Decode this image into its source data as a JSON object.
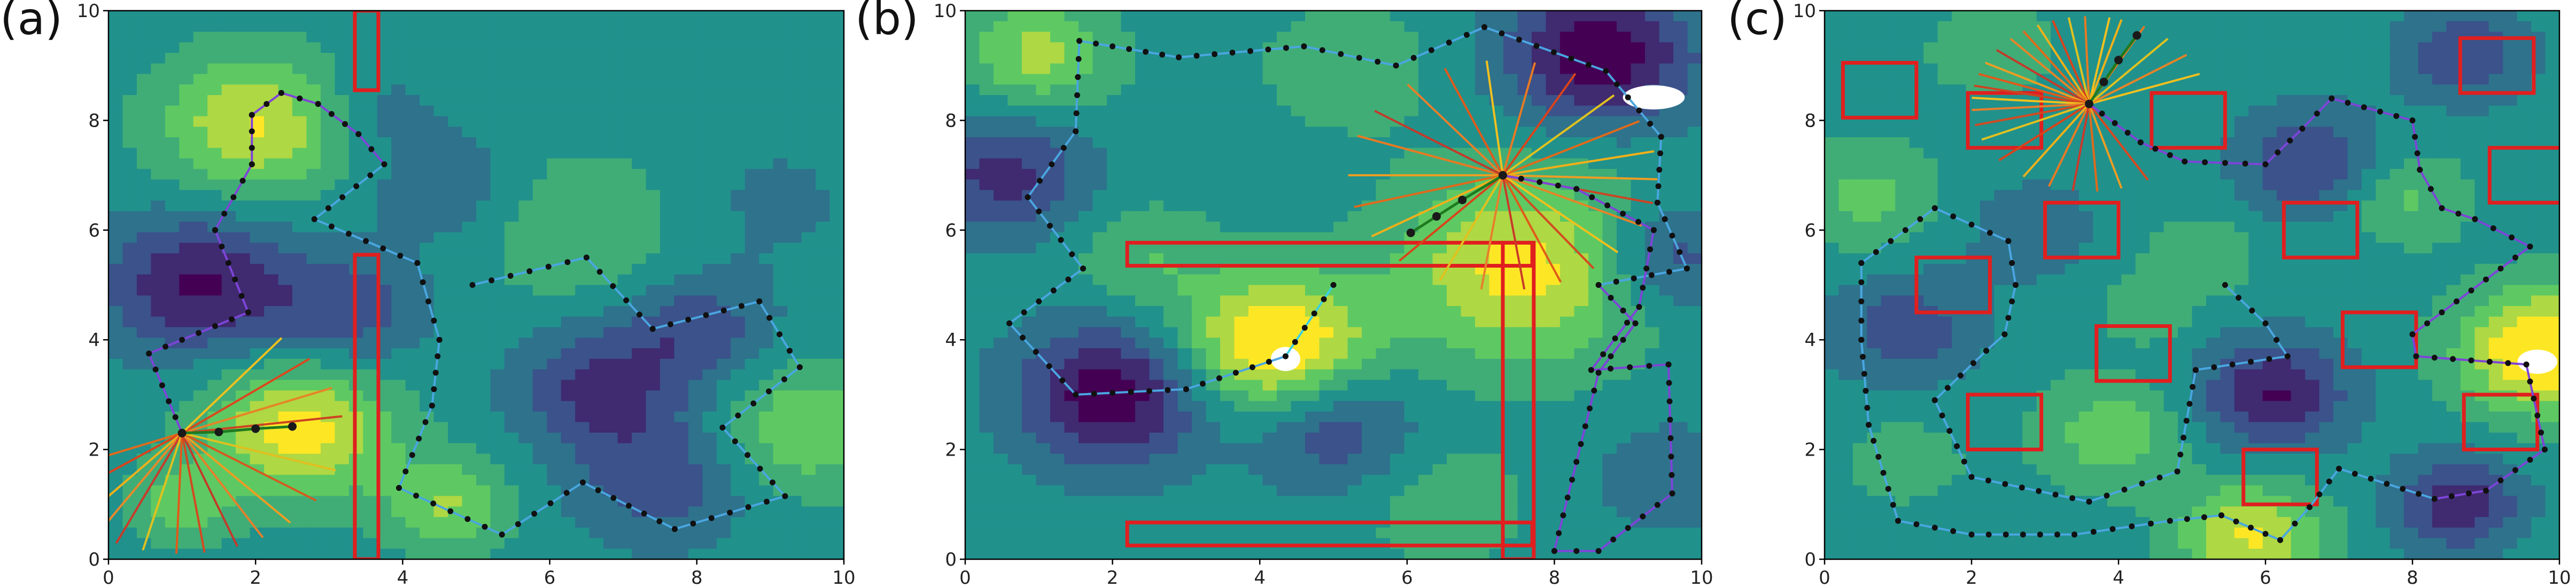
{
  "figure": {
    "panels": [
      {
        "letter": "(a)",
        "xlim": [
          0,
          10
        ],
        "ylim": [
          0,
          10
        ],
        "xticks": [
          0,
          2,
          4,
          6,
          8,
          10
        ],
        "yticks": [
          0,
          2,
          4,
          6,
          8,
          10
        ],
        "bumps": [
          [
            2.0,
            7.9,
            1.0,
            0.9
          ],
          [
            2.6,
            2.4,
            1.1,
            0.9
          ],
          [
            1.2,
            5.0,
            -1.0,
            0.9
          ],
          [
            3.2,
            4.5,
            -0.6,
            0.8
          ],
          [
            6.7,
            3.1,
            -0.8,
            0.8
          ],
          [
            8.0,
            4.2,
            -0.6,
            0.7
          ],
          [
            9.5,
            2.4,
            0.7,
            0.8
          ],
          [
            7.5,
            1.4,
            -0.6,
            0.8
          ],
          [
            4.6,
            1.0,
            0.7,
            0.6
          ],
          [
            6.4,
            6.0,
            0.4,
            1.0
          ],
          [
            4.6,
            6.8,
            -0.4,
            0.7
          ],
          [
            1.0,
            1.0,
            0.6,
            0.5
          ],
          [
            9.0,
            6.5,
            -0.2,
            0.9
          ],
          [
            3.6,
            8.2,
            -0.3,
            0.6
          ]
        ],
        "holes": [],
        "obstacles": [
          [
            3.35,
            8.55,
            0.32,
            1.45
          ],
          [
            3.35,
            0.0,
            0.32,
            5.55
          ]
        ],
        "paths": [
          {
            "color": "#7e44d8",
            "points": [
              [
                1.0,
                2.3
              ],
              [
                0.55,
                3.75
              ],
              [
                1.9,
                4.5
              ],
              [
                1.45,
                6.0
              ],
              [
                1.95,
                7.2
              ],
              [
                1.95,
                8.1
              ],
              [
                2.35,
                8.5
              ],
              [
                2.85,
                8.3
              ],
              [
                3.4,
                7.75
              ],
              [
                3.75,
                7.2
              ]
            ]
          },
          {
            "color": "#4aa6e0",
            "points": [
              [
                3.75,
                7.2
              ],
              [
                2.8,
                6.2
              ],
              [
                4.2,
                5.4
              ]
            ]
          },
          {
            "color": "#4aa6e0",
            "points": [
              [
                4.2,
                5.4
              ],
              [
                4.5,
                4.0
              ],
              [
                4.4,
                2.8
              ],
              [
                3.95,
                1.3
              ],
              [
                5.35,
                0.45
              ],
              [
                6.45,
                1.4
              ],
              [
                7.7,
                0.55
              ],
              [
                9.2,
                1.15
              ],
              [
                8.35,
                2.4
              ],
              [
                9.4,
                3.5
              ],
              [
                8.85,
                4.7
              ],
              [
                7.4,
                4.2
              ],
              [
                6.5,
                5.5
              ],
              [
                4.95,
                5.0
              ]
            ]
          }
        ],
        "trajectory": [
          [
            1.0,
            2.3
          ],
          [
            1.5,
            2.32
          ],
          [
            2.0,
            2.38
          ],
          [
            2.5,
            2.42
          ]
        ],
        "rays": {
          "origin": [
            1.0,
            2.3
          ],
          "len": 2.2,
          "angles": [
            202,
            216,
            229,
            238,
            246,
            256,
            268,
            278,
            290,
            300,
            312,
            326,
            342,
            8,
            22,
            38,
            52
          ],
          "colors": [
            "#e06a1a",
            "#d9431a",
            "#f0b019",
            "#e7892a",
            "#c93a2a",
            "#e0c11f",
            "#e05a1a",
            "#d24a20",
            "#c33a2a",
            "#e77f2a",
            "#ee9d22",
            "#d55a1e",
            "#e0c01f",
            "#cc4422",
            "#e68427",
            "#d9481e",
            "#f1c01e"
          ]
        }
      },
      {
        "letter": "(b)",
        "xlim": [
          0,
          10
        ],
        "ylim": [
          0,
          10
        ],
        "xticks": [
          0,
          2,
          4,
          6,
          8,
          10
        ],
        "yticks": [
          0,
          2,
          4,
          6,
          8,
          10
        ],
        "bumps": [
          [
            4.2,
            3.9,
            1.4,
            0.9
          ],
          [
            7.6,
            5.3,
            1.1,
            1.2
          ],
          [
            2.0,
            3.0,
            -1.2,
            0.9
          ],
          [
            5.0,
            2.4,
            -0.7,
            0.8
          ],
          [
            8.6,
            9.2,
            -1.2,
            0.9
          ],
          [
            0.5,
            7.0,
            -0.8,
            0.8
          ],
          [
            9.5,
            5.5,
            -0.7,
            0.7
          ],
          [
            1.0,
            9.2,
            0.8,
            0.7
          ],
          [
            5.2,
            9.0,
            0.3,
            0.9
          ],
          [
            6.5,
            1.0,
            0.3,
            0.9
          ],
          [
            9.5,
            1.5,
            -0.3,
            0.8
          ],
          [
            2.4,
            5.5,
            0.4,
            0.7
          ]
        ],
        "holes": [
          [
            4.35,
            3.65,
            0.2,
            0.22
          ],
          [
            9.35,
            8.42,
            0.42,
            0.22
          ]
        ],
        "obstacles": [
          [
            2.2,
            5.35,
            5.5,
            0.42
          ],
          [
            7.3,
            0.0,
            0.42,
            5.77
          ],
          [
            2.2,
            0.25,
            5.5,
            0.42
          ]
        ],
        "paths": [
          {
            "color": "#4aa6e0",
            "points": [
              [
                4.35,
                3.7
              ],
              [
                3.0,
                3.1
              ],
              [
                1.5,
                3.0
              ],
              [
                0.6,
                4.3
              ],
              [
                1.6,
                5.3
              ],
              [
                0.85,
                6.6
              ],
              [
                1.5,
                7.8
              ],
              [
                1.55,
                9.45
              ],
              [
                2.9,
                9.15
              ],
              [
                4.6,
                9.35
              ],
              [
                5.85,
                9.0
              ],
              [
                7.05,
                9.7
              ],
              [
                8.7,
                8.9
              ],
              [
                9.45,
                7.7
              ],
              [
                9.4,
                6.5
              ],
              [
                9.8,
                5.3
              ],
              [
                8.6,
                5.0
              ]
            ]
          },
          {
            "color": "#7e44d8",
            "points": [
              [
                8.6,
                5.0
              ],
              [
                9.1,
                4.3
              ],
              [
                8.6,
                3.4
              ],
              [
                8.0,
                0.15
              ],
              [
                8.6,
                0.15
              ],
              [
                9.6,
                1.2
              ],
              [
                9.55,
                3.55
              ],
              [
                8.5,
                3.45
              ],
              [
                9.15,
                4.6
              ],
              [
                9.35,
                6.0
              ],
              [
                8.3,
                6.75
              ],
              [
                7.3,
                7.0
              ]
            ]
          },
          {
            "color": "#3ad0e0",
            "points": [
              [
                4.35,
                3.7
              ],
              [
                5.0,
                5.0
              ]
            ]
          }
        ],
        "trajectory": [
          [
            7.3,
            7.0
          ],
          [
            6.75,
            6.55
          ],
          [
            6.4,
            6.25
          ],
          [
            6.05,
            5.95
          ]
        ],
        "rays": {
          "origin": [
            7.3,
            7.0
          ],
          "len": 2.1,
          "angles": [
            160,
            180,
            196,
            212,
            228,
            246,
            262,
            278,
            292,
            306,
            318,
            334,
            346,
            358,
            12,
            28,
            44,
            62,
            78,
            96,
            112,
            128,
            146
          ],
          "colors": [
            "#e87a22",
            "#ee9d22",
            "#e06a1a",
            "#f0b019",
            "#d9431a",
            "#e0c11f",
            "#e77f2a",
            "#c93a2a",
            "#e05a1a",
            "#d24a20",
            "#f1c01e",
            "#e68427",
            "#cc4422",
            "#ee9d22",
            "#f0b019",
            "#e06a1a",
            "#e0c11f",
            "#d9431a",
            "#e87a22",
            "#f1c01e",
            "#e05a1a",
            "#e77f2a",
            "#c33a2a"
          ]
        }
      },
      {
        "letter": "(c)",
        "xlim": [
          0,
          10
        ],
        "ylim": [
          0,
          10
        ],
        "xticks": [
          0,
          2,
          4,
          6,
          8,
          10
        ],
        "yticks": [
          0,
          2,
          4,
          6,
          8,
          10
        ],
        "bumps": [
          [
            9.8,
            3.8,
            1.4,
            0.8
          ],
          [
            5.8,
            0.4,
            1.0,
            0.7
          ],
          [
            3.9,
            2.3,
            0.6,
            0.7
          ],
          [
            6.1,
            3.0,
            -1.0,
            0.7
          ],
          [
            1.1,
            4.2,
            -0.6,
            0.7
          ],
          [
            8.6,
            1.0,
            -0.9,
            0.6
          ],
          [
            6.6,
            7.2,
            -0.7,
            0.7
          ],
          [
            8.7,
            9.2,
            -0.7,
            0.6
          ],
          [
            0.6,
            6.6,
            0.5,
            0.7
          ],
          [
            2.8,
            6.0,
            -0.3,
            0.7
          ],
          [
            5.2,
            5.6,
            0.3,
            0.6
          ],
          [
            7.9,
            6.6,
            0.5,
            0.6
          ],
          [
            2.3,
            9.3,
            0.4,
            0.6
          ],
          [
            4.4,
            4.6,
            0.3,
            0.5
          ],
          [
            1.1,
            1.8,
            0.3,
            0.6
          ]
        ],
        "holes": [
          [
            9.7,
            3.6,
            0.27,
            0.22
          ]
        ],
        "obstacles": [
          [
            0.25,
            8.05,
            1.0,
            1.0
          ],
          [
            1.95,
            7.5,
            1.0,
            1.0
          ],
          [
            4.45,
            7.5,
            1.0,
            1.0
          ],
          [
            8.65,
            8.5,
            1.0,
            1.0
          ],
          [
            9.05,
            6.5,
            1.0,
            1.0
          ],
          [
            3.0,
            5.5,
            1.0,
            1.0
          ],
          [
            6.25,
            5.5,
            1.0,
            1.0
          ],
          [
            1.25,
            4.5,
            1.0,
            1.0
          ],
          [
            7.05,
            3.5,
            1.0,
            1.0
          ],
          [
            3.7,
            3.25,
            1.0,
            1.0
          ],
          [
            1.95,
            2.0,
            1.0,
            1.0
          ],
          [
            8.7,
            2.0,
            1.0,
            1.0
          ],
          [
            5.7,
            1.0,
            1.0,
            1.0
          ]
        ],
        "paths": [
          {
            "color": "#7e44d8",
            "points": [
              [
                3.6,
                8.3
              ],
              [
                4.3,
                7.6
              ],
              [
                4.9,
                7.25
              ],
              [
                6.0,
                7.2
              ],
              [
                6.5,
                7.85
              ],
              [
                6.9,
                8.4
              ],
              [
                8.0,
                8.0
              ],
              [
                8.1,
                7.1
              ],
              [
                8.4,
                6.4
              ],
              [
                8.85,
                6.2
              ],
              [
                9.6,
                5.7
              ],
              [
                8.0,
                4.1
              ],
              [
                8.05,
                3.7
              ],
              [
                9.55,
                3.55
              ],
              [
                9.8,
                2.0
              ],
              [
                9.0,
                1.25
              ],
              [
                8.3,
                1.1
              ]
            ]
          },
          {
            "color": "#4aa6e0",
            "points": [
              [
                8.3,
                1.1
              ],
              [
                7.0,
                1.65
              ],
              [
                6.6,
                0.95
              ],
              [
                6.2,
                0.35
              ],
              [
                5.4,
                0.8
              ],
              [
                4.7,
                0.7
              ],
              [
                3.4,
                0.45
              ],
              [
                2.0,
                0.45
              ],
              [
                1.0,
                0.7
              ],
              [
                0.6,
                2.45
              ],
              [
                0.5,
                4.0
              ],
              [
                0.5,
                5.4
              ],
              [
                1.5,
                6.4
              ],
              [
                2.5,
                5.8
              ],
              [
                2.6,
                5.0
              ],
              [
                2.45,
                4.1
              ],
              [
                2.2,
                3.8
              ],
              [
                1.5,
                2.9
              ],
              [
                2.0,
                1.5
              ],
              [
                3.6,
                1.05
              ],
              [
                4.8,
                1.6
              ],
              [
                5.05,
                3.45
              ],
              [
                6.3,
                3.7
              ],
              [
                6.0,
                4.3
              ],
              [
                5.45,
                5.0
              ]
            ]
          }
        ],
        "trajectory": [
          [
            3.6,
            8.3
          ],
          [
            3.8,
            8.7
          ],
          [
            4.0,
            9.1
          ],
          [
            4.25,
            9.55
          ]
        ],
        "rays": {
          "origin": [
            3.6,
            8.3
          ],
          "len": 1.6,
          "angles": [
            80,
            92,
            100,
            108,
            116,
            124,
            132,
            142,
            152,
            160,
            168,
            176,
            184,
            194,
            204,
            220,
            236,
            250,
            262,
            274,
            286,
            300,
            20,
            34,
            48,
            62,
            74
          ],
          "colors": [
            "#f1c01e",
            "#e87a22",
            "#e0c11f",
            "#d9431a",
            "#f0b019",
            "#e06a1a",
            "#e68427",
            "#c33a2a",
            "#ee9d22",
            "#e05a1a",
            "#cc4422",
            "#f1c01e",
            "#e77f2a",
            "#d24a20",
            "#e0c11f",
            "#d9431a",
            "#f0b019",
            "#e87a22",
            "#c93a2a",
            "#e06a1a",
            "#ee9d22",
            "#d9481e",
            "#f1c01e",
            "#e68427",
            "#e0c11f",
            "#e87a22",
            "#f0b019"
          ]
        }
      }
    ],
    "colors": {
      "obstacle": "#e01f1f",
      "point": "#111111",
      "trajectory_line": "#1f7a1f",
      "trajectory_point": "#1a1a1a",
      "colormap": [
        "#440154",
        "#3b528b",
        "#21918c",
        "#5ec962",
        "#fde725"
      ]
    }
  }
}
